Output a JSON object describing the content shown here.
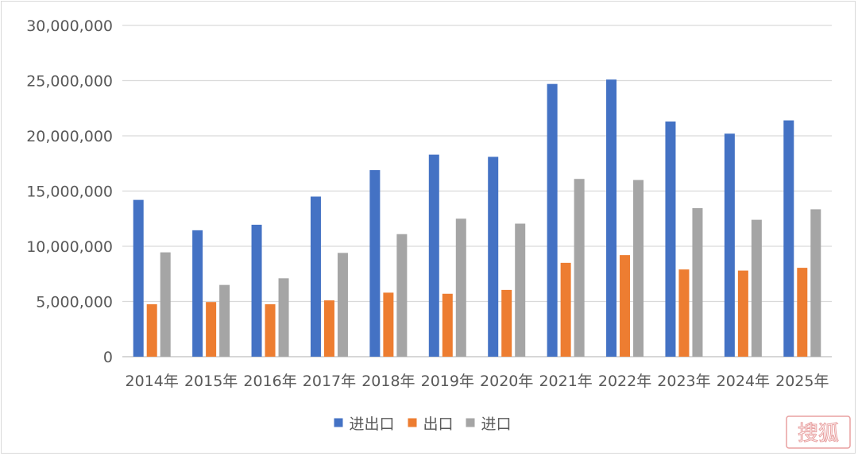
{
  "chart_data": {
    "type": "bar",
    "categories": [
      "2014年",
      "2015年",
      "2016年",
      "2017年",
      "2018年",
      "2019年",
      "2020年",
      "2021年",
      "2022年",
      "2023年",
      "2024年",
      "2025年"
    ],
    "series": [
      {
        "name": "进出口",
        "color": "#4472c4",
        "values": [
          14200000,
          11450000,
          11950000,
          14500000,
          16900000,
          18300000,
          18100000,
          24700000,
          25100000,
          21300000,
          20200000,
          21400000
        ]
      },
      {
        "name": "出口",
        "color": "#ed7d31",
        "values": [
          4750000,
          4950000,
          4750000,
          5100000,
          5800000,
          5700000,
          6050000,
          8500000,
          9200000,
          7900000,
          7800000,
          8050000
        ]
      },
      {
        "name": "进口",
        "color": "#a5a5a5",
        "values": [
          9450000,
          6500000,
          7100000,
          9400000,
          11100000,
          12500000,
          12050000,
          16100000,
          16000000,
          13450000,
          12400000,
          13350000
        ]
      }
    ],
    "yticks": [
      "0",
      "5,000,000",
      "10,000,000",
      "15,000,000",
      "20,000,000",
      "25,000,000",
      "30,000,000"
    ],
    "ylim": [
      0,
      30000000
    ],
    "grid": true,
    "legend_position": "bottom",
    "title": "",
    "xlabel": "",
    "ylabel": ""
  },
  "watermark": {
    "text": "搜狐",
    "color": "#e8a0a0"
  }
}
